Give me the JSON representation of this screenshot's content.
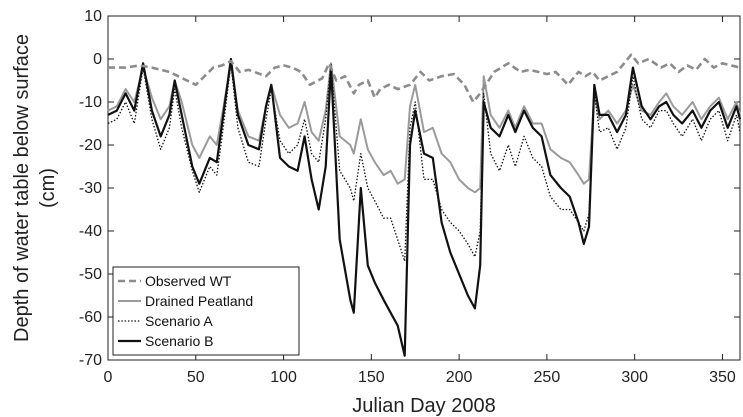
{
  "chart_data": {
    "type": "line",
    "xlabel": "Julian Day 2008",
    "ylabel_line1": "Depth of water table below surface",
    "ylabel_line2": "(cm)",
    "xlim": [
      0,
      360
    ],
    "ylim": [
      -70,
      10
    ],
    "xticks": [
      0,
      50,
      100,
      150,
      200,
      250,
      300,
      350
    ],
    "yticks": [
      10,
      0,
      -10,
      -20,
      -30,
      -40,
      -50,
      -60,
      -70
    ],
    "grid": false,
    "legend_position": "bottom-left",
    "series": [
      {
        "name": "Observed WT",
        "style": "dashed",
        "color": "#8c8c8c",
        "points": [
          [
            0,
            -2
          ],
          [
            10,
            -2
          ],
          [
            18,
            -1.5
          ],
          [
            25,
            -2
          ],
          [
            35,
            -3
          ],
          [
            45,
            -5
          ],
          [
            50,
            -6
          ],
          [
            55,
            -4
          ],
          [
            60,
            -2
          ],
          [
            65,
            -1.5
          ],
          [
            70,
            -0.5
          ],
          [
            75,
            -3
          ],
          [
            80,
            -2.5
          ],
          [
            90,
            -4
          ],
          [
            95,
            -2
          ],
          [
            100,
            -1.5
          ],
          [
            105,
            -2
          ],
          [
            110,
            -3
          ],
          [
            115,
            -6
          ],
          [
            122,
            -4.5
          ],
          [
            126,
            -1
          ],
          [
            130,
            -5
          ],
          [
            135,
            -4
          ],
          [
            140,
            -8
          ],
          [
            143,
            -6
          ],
          [
            148,
            -5
          ],
          [
            152,
            -9
          ],
          [
            155,
            -7
          ],
          [
            160,
            -6
          ],
          [
            165,
            -7
          ],
          [
            172,
            -6
          ],
          [
            178,
            -3
          ],
          [
            183,
            -5
          ],
          [
            190,
            -4
          ],
          [
            197,
            -3.5
          ],
          [
            203,
            -6
          ],
          [
            208,
            -10
          ],
          [
            212,
            -8
          ],
          [
            220,
            -3
          ],
          [
            228,
            -1
          ],
          [
            235,
            -3
          ],
          [
            240,
            -2.5
          ],
          [
            245,
            -3
          ],
          [
            250,
            -3.5
          ],
          [
            255,
            -3
          ],
          [
            262,
            -6
          ],
          [
            268,
            -3
          ],
          [
            272,
            -4
          ],
          [
            276,
            -3
          ],
          [
            280,
            -5
          ],
          [
            285,
            -4
          ],
          [
            290,
            -3
          ],
          [
            298,
            1
          ],
          [
            302,
            -1
          ],
          [
            308,
            0
          ],
          [
            315,
            -2
          ],
          [
            320,
            -1
          ],
          [
            325,
            -3
          ],
          [
            330,
            -1.5
          ],
          [
            335,
            -2.5
          ],
          [
            340,
            0
          ],
          [
            345,
            -2
          ],
          [
            350,
            -1
          ],
          [
            355,
            -1.5
          ],
          [
            360,
            -2
          ]
        ]
      },
      {
        "name": "Drained Peatland",
        "style": "solid",
        "color": "#9a9a9a",
        "points": [
          [
            0,
            -12
          ],
          [
            5,
            -11
          ],
          [
            10,
            -7
          ],
          [
            15,
            -10
          ],
          [
            20,
            -2
          ],
          [
            25,
            -9
          ],
          [
            30,
            -14
          ],
          [
            35,
            -11
          ],
          [
            38,
            -5
          ],
          [
            42,
            -10
          ],
          [
            48,
            -20
          ],
          [
            52,
            -23
          ],
          [
            58,
            -18
          ],
          [
            62,
            -20
          ],
          [
            65,
            -13
          ],
          [
            70,
            -1
          ],
          [
            74,
            -12
          ],
          [
            80,
            -18
          ],
          [
            86,
            -19
          ],
          [
            90,
            -11
          ],
          [
            93,
            -6
          ],
          [
            98,
            -13
          ],
          [
            103,
            -16
          ],
          [
            108,
            -15
          ],
          [
            112,
            -10
          ],
          [
            116,
            -17
          ],
          [
            120,
            -19
          ],
          [
            124,
            -12
          ],
          [
            127,
            -1
          ],
          [
            132,
            -18
          ],
          [
            138,
            -20
          ],
          [
            140,
            -22
          ],
          [
            144,
            -14
          ],
          [
            148,
            -21
          ],
          [
            152,
            -24
          ],
          [
            157,
            -27
          ],
          [
            161,
            -26
          ],
          [
            165,
            -29
          ],
          [
            169,
            -28
          ],
          [
            172,
            -11
          ],
          [
            175,
            -6
          ],
          [
            180,
            -17
          ],
          [
            185,
            -16
          ],
          [
            190,
            -22
          ],
          [
            195,
            -24
          ],
          [
            200,
            -28
          ],
          [
            205,
            -30
          ],
          [
            209,
            -31
          ],
          [
            212,
            -30
          ],
          [
            214,
            -4
          ],
          [
            218,
            -13
          ],
          [
            223,
            -16
          ],
          [
            228,
            -12
          ],
          [
            232,
            -16
          ],
          [
            237,
            -11
          ],
          [
            242,
            -15
          ],
          [
            247,
            -15
          ],
          [
            252,
            -21
          ],
          [
            258,
            -23
          ],
          [
            263,
            -24
          ],
          [
            268,
            -27
          ],
          [
            271,
            -29
          ],
          [
            274,
            -28
          ],
          [
            277,
            -8
          ],
          [
            280,
            -14
          ],
          [
            285,
            -12
          ],
          [
            290,
            -15
          ],
          [
            295,
            -12
          ],
          [
            299,
            -6
          ],
          [
            304,
            -12
          ],
          [
            309,
            -13
          ],
          [
            314,
            -10
          ],
          [
            318,
            -8
          ],
          [
            322,
            -11
          ],
          [
            327,
            -13
          ],
          [
            333,
            -10
          ],
          [
            338,
            -14
          ],
          [
            343,
            -11
          ],
          [
            348,
            -9
          ],
          [
            353,
            -14
          ],
          [
            358,
            -10
          ],
          [
            360,
            -13
          ]
        ]
      },
      {
        "name": "Scenario A",
        "style": "dotted",
        "color": "#111111",
        "points": [
          [
            0,
            -15
          ],
          [
            5,
            -14
          ],
          [
            10,
            -10
          ],
          [
            15,
            -15
          ],
          [
            20,
            -2
          ],
          [
            25,
            -14
          ],
          [
            30,
            -21
          ],
          [
            35,
            -16
          ],
          [
            38,
            -7
          ],
          [
            42,
            -16
          ],
          [
            48,
            -26
          ],
          [
            52,
            -31
          ],
          [
            58,
            -25
          ],
          [
            62,
            -27
          ],
          [
            65,
            -18
          ],
          [
            70,
            -1
          ],
          [
            74,
            -16
          ],
          [
            80,
            -24
          ],
          [
            86,
            -25
          ],
          [
            90,
            -14
          ],
          [
            93,
            -7
          ],
          [
            98,
            -19
          ],
          [
            103,
            -22
          ],
          [
            108,
            -20
          ],
          [
            112,
            -14
          ],
          [
            116,
            -22
          ],
          [
            120,
            -24
          ],
          [
            124,
            -14
          ],
          [
            127,
            -1
          ],
          [
            132,
            -26
          ],
          [
            138,
            -30
          ],
          [
            140,
            -33
          ],
          [
            144,
            -22
          ],
          [
            148,
            -30
          ],
          [
            152,
            -33
          ],
          [
            157,
            -37
          ],
          [
            161,
            -37
          ],
          [
            165,
            -42
          ],
          [
            169,
            -47
          ],
          [
            172,
            -16
          ],
          [
            175,
            -10
          ],
          [
            180,
            -28
          ],
          [
            185,
            -28
          ],
          [
            190,
            -35
          ],
          [
            195,
            -38
          ],
          [
            200,
            -40
          ],
          [
            205,
            -43
          ],
          [
            209,
            -46
          ],
          [
            212,
            -40
          ],
          [
            214,
            -8
          ],
          [
            218,
            -22
          ],
          [
            223,
            -26
          ],
          [
            228,
            -20
          ],
          [
            232,
            -25
          ],
          [
            237,
            -18
          ],
          [
            242,
            -23
          ],
          [
            247,
            -25
          ],
          [
            252,
            -32
          ],
          [
            258,
            -35
          ],
          [
            263,
            -35
          ],
          [
            268,
            -38
          ],
          [
            271,
            -40
          ],
          [
            274,
            -36
          ],
          [
            277,
            -8
          ],
          [
            280,
            -17
          ],
          [
            285,
            -16
          ],
          [
            290,
            -21
          ],
          [
            295,
            -16
          ],
          [
            299,
            -4
          ],
          [
            304,
            -14
          ],
          [
            309,
            -16
          ],
          [
            314,
            -12
          ],
          [
            318,
            -12
          ],
          [
            322,
            -15
          ],
          [
            327,
            -18
          ],
          [
            333,
            -14
          ],
          [
            338,
            -19
          ],
          [
            343,
            -14
          ],
          [
            348,
            -12
          ],
          [
            353,
            -19
          ],
          [
            358,
            -13
          ],
          [
            360,
            -17
          ]
        ]
      },
      {
        "name": "Scenario B",
        "style": "solid-thick",
        "color": "#111111",
        "points": [
          [
            0,
            -13
          ],
          [
            5,
            -12
          ],
          [
            10,
            -8
          ],
          [
            15,
            -12
          ],
          [
            20,
            -1
          ],
          [
            25,
            -12
          ],
          [
            30,
            -18
          ],
          [
            35,
            -13
          ],
          [
            38,
            -5
          ],
          [
            42,
            -13
          ],
          [
            48,
            -25
          ],
          [
            52,
            -29
          ],
          [
            58,
            -23
          ],
          [
            62,
            -24
          ],
          [
            65,
            -15
          ],
          [
            70,
            0
          ],
          [
            74,
            -13
          ],
          [
            80,
            -20
          ],
          [
            86,
            -21
          ],
          [
            90,
            -11
          ],
          [
            93,
            -6
          ],
          [
            98,
            -23
          ],
          [
            103,
            -25
          ],
          [
            108,
            -26
          ],
          [
            112,
            -18
          ],
          [
            116,
            -28
          ],
          [
            120,
            -35
          ],
          [
            124,
            -25
          ],
          [
            127,
            -2
          ],
          [
            132,
            -42
          ],
          [
            138,
            -56
          ],
          [
            140,
            -59
          ],
          [
            144,
            -30
          ],
          [
            148,
            -48
          ],
          [
            152,
            -52
          ],
          [
            157,
            -56
          ],
          [
            161,
            -59
          ],
          [
            165,
            -62
          ],
          [
            169,
            -69
          ],
          [
            172,
            -20
          ],
          [
            175,
            -12
          ],
          [
            180,
            -22
          ],
          [
            185,
            -23
          ],
          [
            190,
            -38
          ],
          [
            195,
            -45
          ],
          [
            200,
            -50
          ],
          [
            205,
            -55
          ],
          [
            209,
            -58
          ],
          [
            212,
            -48
          ],
          [
            214,
            -10
          ],
          [
            218,
            -16
          ],
          [
            223,
            -18
          ],
          [
            228,
            -13
          ],
          [
            232,
            -17
          ],
          [
            237,
            -12
          ],
          [
            242,
            -16
          ],
          [
            247,
            -18
          ],
          [
            252,
            -27
          ],
          [
            258,
            -30
          ],
          [
            263,
            -32
          ],
          [
            268,
            -38
          ],
          [
            271,
            -43
          ],
          [
            274,
            -39
          ],
          [
            277,
            -6
          ],
          [
            280,
            -13
          ],
          [
            285,
            -13
          ],
          [
            290,
            -17
          ],
          [
            295,
            -13
          ],
          [
            299,
            -2
          ],
          [
            304,
            -11
          ],
          [
            309,
            -14
          ],
          [
            314,
            -11
          ],
          [
            318,
            -10
          ],
          [
            322,
            -13
          ],
          [
            327,
            -15
          ],
          [
            333,
            -12
          ],
          [
            338,
            -16
          ],
          [
            343,
            -12
          ],
          [
            348,
            -10
          ],
          [
            353,
            -16
          ],
          [
            358,
            -11
          ],
          [
            360,
            -14
          ]
        ]
      }
    ]
  }
}
